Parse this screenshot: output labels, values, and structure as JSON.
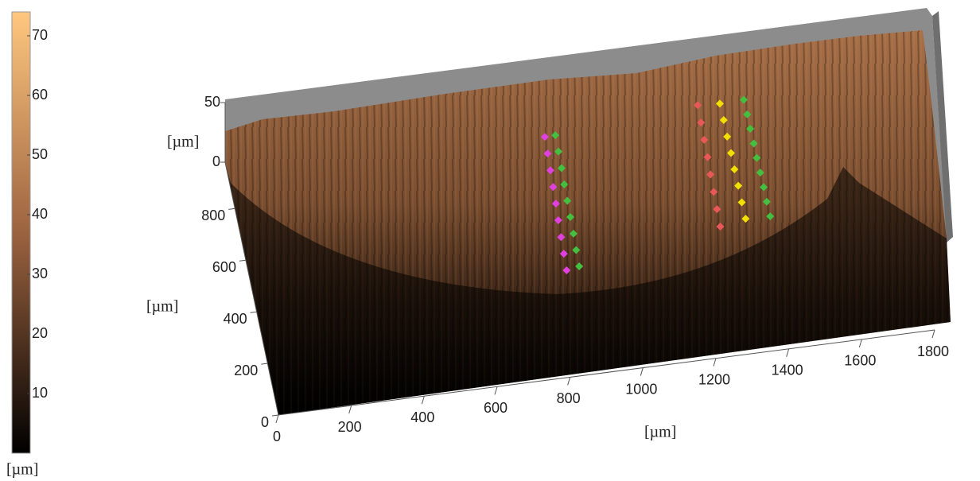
{
  "chart_data": {
    "type": "surface",
    "xlabel": "[µm]",
    "ylabel": "[µm]",
    "zlabel": "[µm]",
    "colorbar_label": "[µm]",
    "xlim": [
      0,
      1800
    ],
    "xticks": [
      0,
      200,
      400,
      600,
      800,
      1000,
      1200,
      1400,
      1600,
      1800
    ],
    "ylim": [
      0,
      980
    ],
    "yticks": [
      0,
      200,
      400,
      600,
      800
    ],
    "zlim": [
      0,
      50
    ],
    "zticks": [
      0,
      50
    ],
    "clim": [
      0,
      74
    ],
    "cticks": [
      10,
      20,
      30,
      40,
      50,
      60,
      70
    ],
    "series": [
      {
        "color": "#e040e0",
        "x": [
          841,
          839,
          837,
          835,
          833,
          830,
          828,
          826,
          824
        ],
        "y": [
          739,
          675,
          610,
          546,
          482,
          418,
          353,
          289,
          225
        ],
        "z": [
          40,
          40,
          40,
          40,
          40,
          40,
          40,
          40,
          40
        ]
      },
      {
        "color": "#44c040",
        "x": [
          870,
          869,
          868,
          866,
          865,
          864,
          863,
          861,
          860
        ],
        "y": [
          740,
          677,
          613,
          550,
          487,
          424,
          360,
          297,
          234
        ],
        "z": [
          40,
          40,
          40,
          40,
          40,
          40,
          40,
          40,
          40
        ]
      },
      {
        "color": "#e85858",
        "x": [
          1267,
          1266,
          1265,
          1264,
          1262,
          1261,
          1260,
          1259
        ],
        "y": [
          784,
          717,
          650,
          583,
          516,
          449,
          382,
          315
        ],
        "z": [
          40,
          40,
          40,
          40,
          40,
          40,
          40,
          40
        ]
      },
      {
        "color": "#f2e000",
        "x": [
          1327,
          1328,
          1328,
          1329,
          1329,
          1330,
          1330,
          1331
        ],
        "y": [
          779,
          715,
          651,
          587,
          524,
          460,
          396,
          332
        ],
        "z": [
          40,
          40,
          40,
          40,
          40,
          40,
          40,
          40
        ]
      },
      {
        "color": "#44c040",
        "x": [
          1393,
          1394,
          1394,
          1395,
          1395,
          1396,
          1397,
          1397,
          1398
        ],
        "y": [
          782,
          725,
          669,
          612,
          556,
          499,
          442,
          386,
          329
        ],
        "z": [
          40,
          40,
          40,
          40,
          40,
          40,
          40,
          40,
          40
        ]
      }
    ]
  }
}
